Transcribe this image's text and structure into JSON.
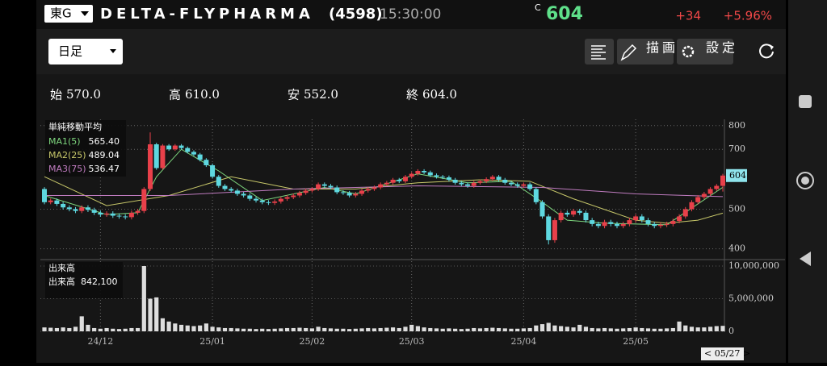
{
  "header": {
    "market": "東G",
    "name": "DELTA-FLYPHARMA",
    "code": "(4598)",
    "time": "15:30:00",
    "price_flag": "C",
    "price": "604",
    "change": "+34",
    "change_pct": "+5.96%"
  },
  "toolbar": {
    "period": "日足",
    "draw_button": "描画",
    "settings_button": "設定"
  },
  "ohlc": [
    {
      "label": "始",
      "value": "570.0"
    },
    {
      "label": "高",
      "value": "610.0"
    },
    {
      "label": "安",
      "value": "552.0"
    },
    {
      "label": "終",
      "value": "604.0"
    }
  ],
  "chart": {
    "type": "candlestick",
    "log_scale": true,
    "up_color": "#e8404a",
    "down_color": "#5ed8e0",
    "categories": [
      null,
      null,
      null,
      null,
      null,
      null,
      null,
      null,
      null,
      "24/12",
      null,
      null,
      null,
      null,
      null,
      null,
      null,
      null,
      null,
      null,
      null,
      null,
      null,
      null,
      null,
      null,
      null,
      "25/01",
      null,
      null,
      null,
      null,
      null,
      null,
      null,
      null,
      null,
      null,
      null,
      null,
      null,
      null,
      null,
      "25/02",
      null,
      null,
      null,
      null,
      null,
      null,
      null,
      null,
      null,
      null,
      null,
      null,
      null,
      null,
      null,
      "25/03",
      null,
      null,
      null,
      null,
      null,
      null,
      null,
      null,
      null,
      null,
      null,
      null,
      null,
      null,
      null,
      null,
      null,
      "25/04",
      null,
      null,
      null,
      null,
      null,
      null,
      null,
      null,
      null,
      null,
      null,
      null,
      null,
      null,
      null,
      null,
      null,
      "25/05",
      null,
      null,
      null,
      null,
      null,
      null,
      null,
      null,
      null,
      null,
      null,
      null,
      null,
      null
    ],
    "open": [
      560,
      520,
      525,
      515,
      505,
      500,
      495,
      505,
      498,
      490,
      485,
      488,
      482,
      480,
      478,
      490,
      495,
      560,
      720,
      630,
      715,
      700,
      715,
      705,
      690,
      680,
      660,
      640,
      600,
      570,
      560,
      555,
      545,
      540,
      530,
      525,
      520,
      518,
      522,
      530,
      535,
      540,
      548,
      555,
      560,
      575,
      570,
      565,
      550,
      548,
      540,
      545,
      555,
      560,
      565,
      575,
      580,
      590,
      585,
      600,
      610,
      620,
      615,
      605,
      600,
      598,
      590,
      580,
      575,
      570,
      580,
      585,
      592,
      600,
      590,
      580,
      575,
      570,
      575,
      560,
      520,
      480,
      420,
      470,
      490,
      485,
      495,
      490,
      470,
      460,
      455,
      465,
      460,
      455,
      460,
      470,
      480,
      470,
      460,
      455,
      458,
      460,
      468,
      480,
      500,
      520,
      535,
      545,
      560,
      570
    ],
    "high": [
      566,
      531,
      531,
      521,
      511,
      506,
      511,
      511,
      504,
      496,
      494,
      494,
      488,
      486,
      496,
      501,
      566,
      770,
      726,
      721,
      721,
      721,
      721,
      711,
      696,
      686,
      666,
      646,
      606,
      576,
      566,
      561,
      551,
      546,
      536,
      531,
      526,
      528,
      536,
      541,
      546,
      554,
      561,
      566,
      581,
      581,
      576,
      571,
      556,
      554,
      551,
      561,
      566,
      571,
      581,
      586,
      596,
      596,
      606,
      616,
      626,
      626,
      621,
      611,
      606,
      604,
      596,
      586,
      581,
      586,
      591,
      598,
      606,
      606,
      596,
      586,
      581,
      581,
      581,
      566,
      526,
      486,
      476,
      496,
      496,
      501,
      501,
      496,
      476,
      466,
      471,
      471,
      466,
      466,
      476,
      486,
      486,
      476,
      466,
      464,
      466,
      474,
      486,
      506,
      526,
      541,
      551,
      566,
      576,
      610
    ],
    "low": [
      514,
      514,
      509,
      499,
      494,
      489,
      489,
      492,
      484,
      479,
      479,
      476,
      474,
      472,
      472,
      484,
      489,
      554,
      624,
      624,
      694,
      694,
      699,
      684,
      674,
      654,
      634,
      594,
      564,
      554,
      549,
      539,
      534,
      524,
      519,
      514,
      512,
      512,
      516,
      524,
      529,
      534,
      542,
      549,
      554,
      564,
      559,
      544,
      542,
      534,
      534,
      539,
      549,
      554,
      559,
      569,
      574,
      579,
      579,
      594,
      604,
      609,
      599,
      594,
      592,
      584,
      574,
      569,
      564,
      564,
      574,
      579,
      586,
      584,
      574,
      569,
      564,
      564,
      554,
      514,
      474,
      410,
      414,
      464,
      479,
      479,
      484,
      464,
      454,
      449,
      449,
      454,
      449,
      449,
      454,
      464,
      464,
      454,
      449,
      449,
      452,
      454,
      462,
      474,
      494,
      514,
      529,
      539,
      554,
      552
    ],
    "close": [
      520,
      525,
      515,
      505,
      500,
      495,
      505,
      498,
      490,
      485,
      488,
      482,
      480,
      478,
      490,
      495,
      560,
      720,
      630,
      715,
      700,
      715,
      705,
      690,
      680,
      660,
      640,
      600,
      570,
      560,
      555,
      545,
      540,
      530,
      525,
      520,
      518,
      522,
      530,
      535,
      540,
      548,
      555,
      560,
      575,
      570,
      565,
      550,
      548,
      540,
      545,
      555,
      560,
      565,
      575,
      580,
      590,
      585,
      600,
      610,
      620,
      615,
      605,
      600,
      598,
      590,
      580,
      575,
      570,
      580,
      585,
      592,
      600,
      590,
      580,
      575,
      570,
      575,
      560,
      520,
      480,
      420,
      470,
      490,
      485,
      495,
      490,
      470,
      460,
      455,
      465,
      460,
      455,
      460,
      470,
      480,
      470,
      460,
      455,
      458,
      460,
      468,
      480,
      500,
      520,
      535,
      545,
      560,
      570,
      604
    ],
    "ylim": [
      380,
      840
    ],
    "yticks": [
      400,
      500,
      700,
      800
    ],
    "price_tag": "604",
    "date_tag": "< 05/27 >",
    "ma_title": "単純移動平均",
    "ma": [
      {
        "name": "MA1(5)",
        "color": "#7fd87f",
        "value_label": "565.40",
        "index": [
          0,
          10,
          15,
          18,
          22,
          28,
          35,
          45,
          50,
          60,
          68,
          75,
          80,
          84,
          90,
          100,
          105,
          109
        ],
        "values": [
          540,
          485,
          490,
          600,
          700,
          620,
          525,
          565,
          545,
          610,
          580,
          585,
          520,
          470,
          462,
          458,
          515,
          565.4
        ]
      },
      {
        "name": "MA2(25)",
        "color": "#c8c86a",
        "value_label": "489.04",
        "index": [
          0,
          10,
          20,
          30,
          40,
          50,
          60,
          70,
          78,
          85,
          95,
          100,
          105,
          109
        ],
        "values": [
          600,
          510,
          540,
          600,
          560,
          560,
          580,
          590,
          585,
          530,
          470,
          462,
          470,
          489.04
        ]
      },
      {
        "name": "MA3(75)",
        "color": "#c07cc0",
        "value_label": "536.47",
        "index": [
          0,
          20,
          40,
          60,
          80,
          95,
          109
        ],
        "values": [
          540,
          540,
          560,
          570,
          565,
          545,
          536.47
        ]
      }
    ],
    "volume_title": "出来高",
    "volume_name": "出来高",
    "volume_label": "842,100",
    "volume": [
      600000,
      550000,
      500000,
      600000,
      500000,
      700000,
      2300000,
      1000000,
      500000,
      400000,
      500000,
      400000,
      350000,
      400000,
      500000,
      500000,
      10000000,
      5000000,
      5200000,
      2000000,
      1500000,
      1200000,
      1000000,
      900000,
      800000,
      900000,
      1200000,
      700000,
      600000,
      500000,
      500000,
      450000,
      400000,
      400000,
      350000,
      400000,
      350000,
      400000,
      450000,
      500000,
      500000,
      550000,
      500000,
      450000,
      700000,
      500000,
      450000,
      400000,
      400000,
      350000,
      400000,
      450000,
      500000,
      450000,
      500000,
      550000,
      600000,
      500000,
      700000,
      1000000,
      800000,
      600000,
      500000,
      450000,
      400000,
      450000,
      400000,
      350000,
      400000,
      500000,
      450000,
      500000,
      550000,
      500000,
      450000,
      400000,
      400000,
      450000,
      500000,
      900000,
      1100000,
      1300000,
      900000,
      800000,
      700000,
      600000,
      1000000,
      700000,
      500000,
      450000,
      500000,
      450000,
      400000,
      450000,
      500000,
      600000,
      500000,
      450000,
      400000,
      400000,
      450000,
      500000,
      1500000,
      900000,
      700000,
      600000,
      600000,
      700000,
      800000,
      842100
    ],
    "vlim": [
      0,
      10000000
    ],
    "vticks": [
      0,
      {
        "value": 5000000,
        "label": "5,000,000"
      },
      {
        "value": 10000000,
        "label": "10,000,000"
      }
    ],
    "volume_color": "#dddddd"
  }
}
